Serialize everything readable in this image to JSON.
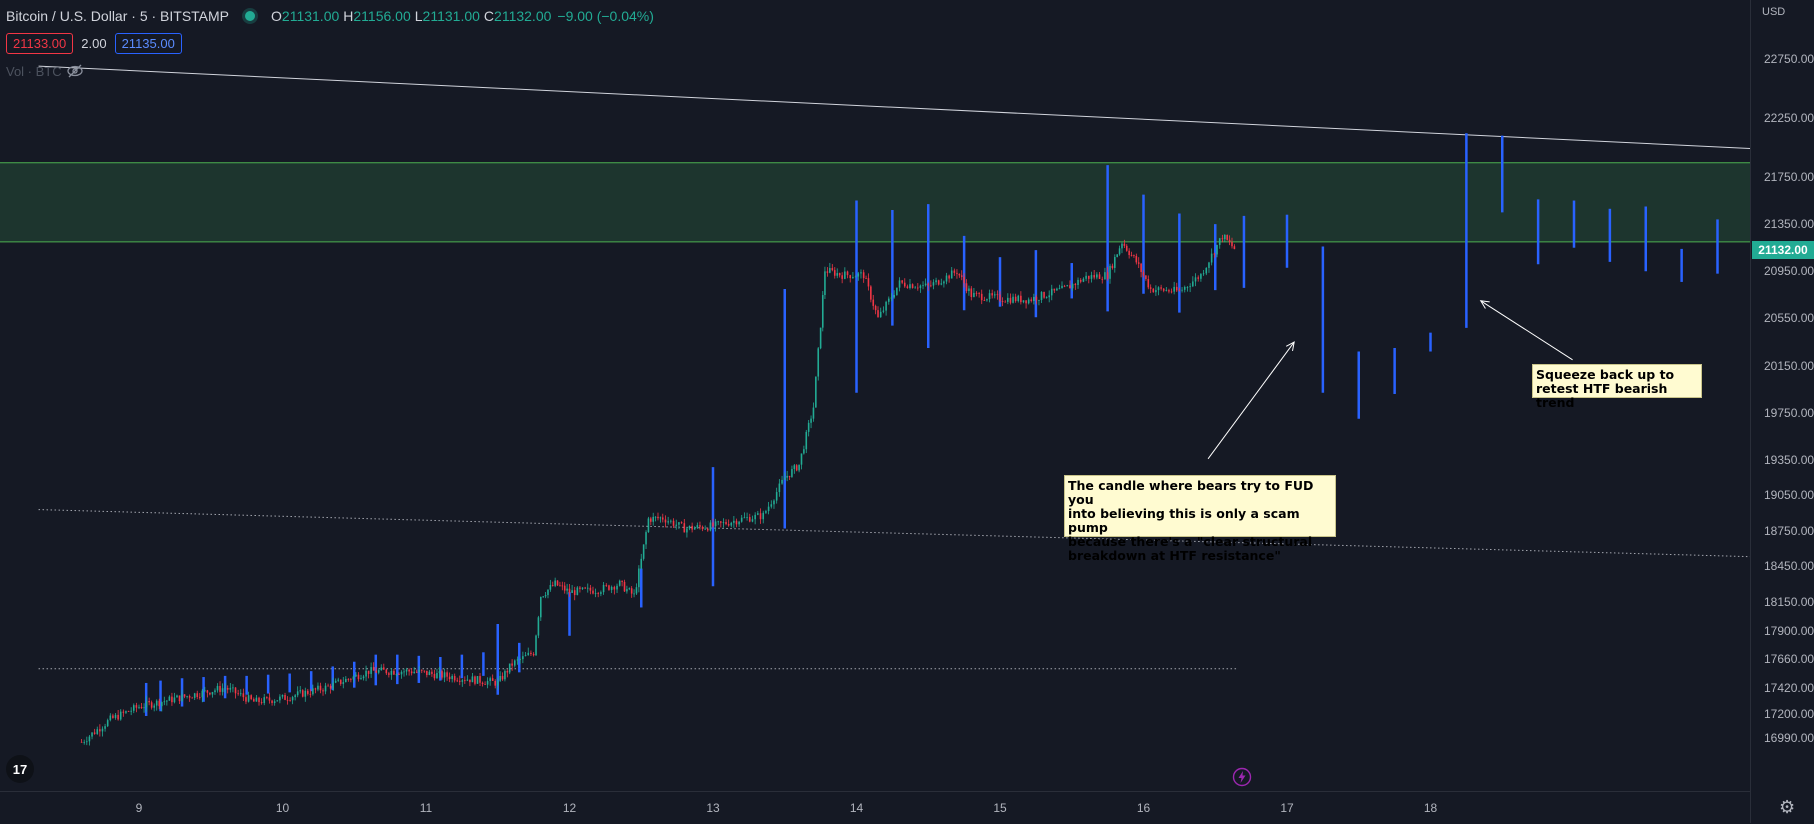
{
  "legend": {
    "symbol": "Bitcoin / U.S. Dollar · 5 · BITSTAMP",
    "open_label": "O",
    "open": "21131.00",
    "high_label": "H",
    "high": "21156.00",
    "low_label": "L",
    "low": "21131.00",
    "close_label": "C",
    "close": "21132.00",
    "change": "−9.00 (−0.04%)"
  },
  "orders": {
    "sell": "21133.00",
    "spread": "2.00",
    "buy": "21135.00"
  },
  "volume_label": "Vol · BTC",
  "price_axis": {
    "currency": "USD",
    "current_price": "21132.00",
    "ticks": [
      "22750.00",
      "22250.00",
      "21750.00",
      "21350.00",
      "20950.00",
      "20550.00",
      "20150.00",
      "19750.00",
      "19350.00",
      "19050.00",
      "18750.00",
      "18450.00",
      "18150.00",
      "17900.00",
      "17660.00",
      "17420.00",
      "17200.00",
      "16990.00"
    ]
  },
  "time_axis": {
    "ticks": [
      "9",
      "10",
      "11",
      "12",
      "13",
      "14",
      "15",
      "16",
      "17",
      "18"
    ]
  },
  "annotations": {
    "fud_note": [
      "The candle where bears try to FUD you",
      "into believing this is only a scam pump",
      "because there's a \"clear structural",
      "breakdown at HTF resistance\""
    ],
    "squeeze_note": [
      "Squeeze back up to",
      "retest HTF bearish trend"
    ]
  },
  "icons": {
    "logo": "tradingview-logo-icon",
    "eye": "eye-hidden-icon",
    "lightning": "lightning-icon",
    "settings": "gear-icon"
  },
  "colors": {
    "background": "#151924",
    "up": "#22ab94",
    "down": "#f23645",
    "projection": "#2962ff",
    "zone_fill": "#1f3b30",
    "zone_line": "#4caf50",
    "trendline": "#d1d4dc",
    "note_bg": "#fffbd1"
  },
  "chart_data": {
    "type": "candlestick",
    "symbol": "BTCUSD",
    "timeframe": "5",
    "x": [
      "9",
      "10",
      "11",
      "12",
      "13",
      "14",
      "15",
      "16",
      "17",
      "18"
    ],
    "ylim": [
      16900,
      22900
    ],
    "price_path": [
      [
        8.6,
        16960
      ],
      [
        8.8,
        17150
      ],
      [
        9.0,
        17260
      ],
      [
        9.3,
        17340
      ],
      [
        9.6,
        17420
      ],
      [
        9.8,
        17300
      ],
      [
        10.0,
        17330
      ],
      [
        10.3,
        17420
      ],
      [
        10.6,
        17560
      ],
      [
        10.9,
        17560
      ],
      [
        11.2,
        17510
      ],
      [
        11.5,
        17460
      ],
      [
        11.6,
        17620
      ],
      [
        11.75,
        17720
      ],
      [
        11.8,
        18200
      ],
      [
        11.9,
        18300
      ],
      [
        12.0,
        18230
      ],
      [
        12.2,
        18250
      ],
      [
        12.35,
        18300
      ],
      [
        12.45,
        18200
      ],
      [
        12.5,
        18500
      ],
      [
        12.55,
        18850
      ],
      [
        12.65,
        18860
      ],
      [
        12.8,
        18770
      ],
      [
        13.0,
        18790
      ],
      [
        13.2,
        18850
      ],
      [
        13.35,
        18880
      ],
      [
        13.5,
        19200
      ],
      [
        13.6,
        19310
      ],
      [
        13.7,
        19800
      ],
      [
        13.75,
        20500
      ],
      [
        13.78,
        20960
      ],
      [
        13.9,
        20920
      ],
      [
        14.05,
        20920
      ],
      [
        14.15,
        20550
      ],
      [
        14.3,
        20850
      ],
      [
        14.5,
        20820
      ],
      [
        14.7,
        20950
      ],
      [
        14.8,
        20750
      ],
      [
        15.0,
        20720
      ],
      [
        15.2,
        20710
      ],
      [
        15.45,
        20800
      ],
      [
        15.6,
        20900
      ],
      [
        15.75,
        20920
      ],
      [
        15.85,
        21200
      ],
      [
        15.95,
        21030
      ],
      [
        16.05,
        20800
      ],
      [
        16.25,
        20780
      ],
      [
        16.4,
        20920
      ],
      [
        16.55,
        21250
      ],
      [
        16.65,
        21120
      ]
    ],
    "projection_bars": [
      [
        9.05,
        17180,
        17460
      ],
      [
        9.15,
        17220,
        17480
      ],
      [
        9.3,
        17260,
        17500
      ],
      [
        9.45,
        17300,
        17510
      ],
      [
        9.6,
        17330,
        17520
      ],
      [
        9.75,
        17360,
        17520
      ],
      [
        9.9,
        17370,
        17530
      ],
      [
        10.05,
        17380,
        17540
      ],
      [
        10.2,
        17390,
        17560
      ],
      [
        10.35,
        17400,
        17600
      ],
      [
        10.5,
        17420,
        17640
      ],
      [
        10.65,
        17440,
        17700
      ],
      [
        10.8,
        17450,
        17700
      ],
      [
        10.95,
        17460,
        17690
      ],
      [
        11.1,
        17480,
        17680
      ],
      [
        11.25,
        17500,
        17700
      ],
      [
        11.4,
        17520,
        17720
      ],
      [
        11.5,
        17360,
        17960
      ],
      [
        11.65,
        17550,
        17800
      ],
      [
        12.0,
        17860,
        18230
      ],
      [
        12.5,
        18100,
        18430
      ],
      [
        13.0,
        18280,
        19290
      ],
      [
        13.5,
        18770,
        20800
      ],
      [
        14.0,
        19920,
        21550
      ],
      [
        14.25,
        20490,
        21470
      ],
      [
        14.5,
        20300,
        21520
      ],
      [
        14.75,
        20620,
        21250
      ],
      [
        15.0,
        20650,
        21070
      ],
      [
        15.25,
        20560,
        21130
      ],
      [
        15.5,
        20720,
        21020
      ],
      [
        15.75,
        20610,
        21850
      ],
      [
        16.0,
        20760,
        21600
      ],
      [
        16.25,
        20600,
        21440
      ],
      [
        16.5,
        20790,
        21350
      ],
      [
        16.7,
        20810,
        21420
      ],
      [
        17.0,
        20980,
        21430
      ],
      [
        17.25,
        19920,
        21160
      ],
      [
        17.5,
        19700,
        20270
      ],
      [
        17.75,
        19910,
        20300
      ],
      [
        18.0,
        20270,
        20430
      ],
      [
        18.25,
        20470,
        22120
      ],
      [
        18.5,
        21450,
        22100
      ],
      [
        18.75,
        21010,
        21560
      ],
      [
        19.0,
        21150,
        21550
      ],
      [
        19.25,
        21030,
        21480
      ],
      [
        19.5,
        20950,
        21500
      ],
      [
        19.75,
        20860,
        21140
      ],
      [
        20.0,
        20930,
        21390
      ],
      [
        20.25,
        21200,
        21460
      ]
    ],
    "resistance_zone": [
      21200,
      21870
    ],
    "trendlines": [
      {
        "style": "solid",
        "points": [
          [
            8.3,
            22690
          ],
          [
            20.25,
            21990
          ]
        ]
      },
      {
        "style": "dotted",
        "points": [
          [
            8.3,
            18930
          ],
          [
            20.25,
            18530
          ]
        ]
      },
      {
        "style": "dotted",
        "points": [
          [
            8.3,
            17580
          ],
          [
            16.65,
            17580
          ]
        ]
      }
    ],
    "arrows": [
      {
        "from": [
          16.45,
          19360
        ],
        "to": [
          17.05,
          20350
        ]
      },
      {
        "from": [
          18.99,
          20200
        ],
        "to": [
          18.35,
          20700
        ]
      }
    ]
  }
}
